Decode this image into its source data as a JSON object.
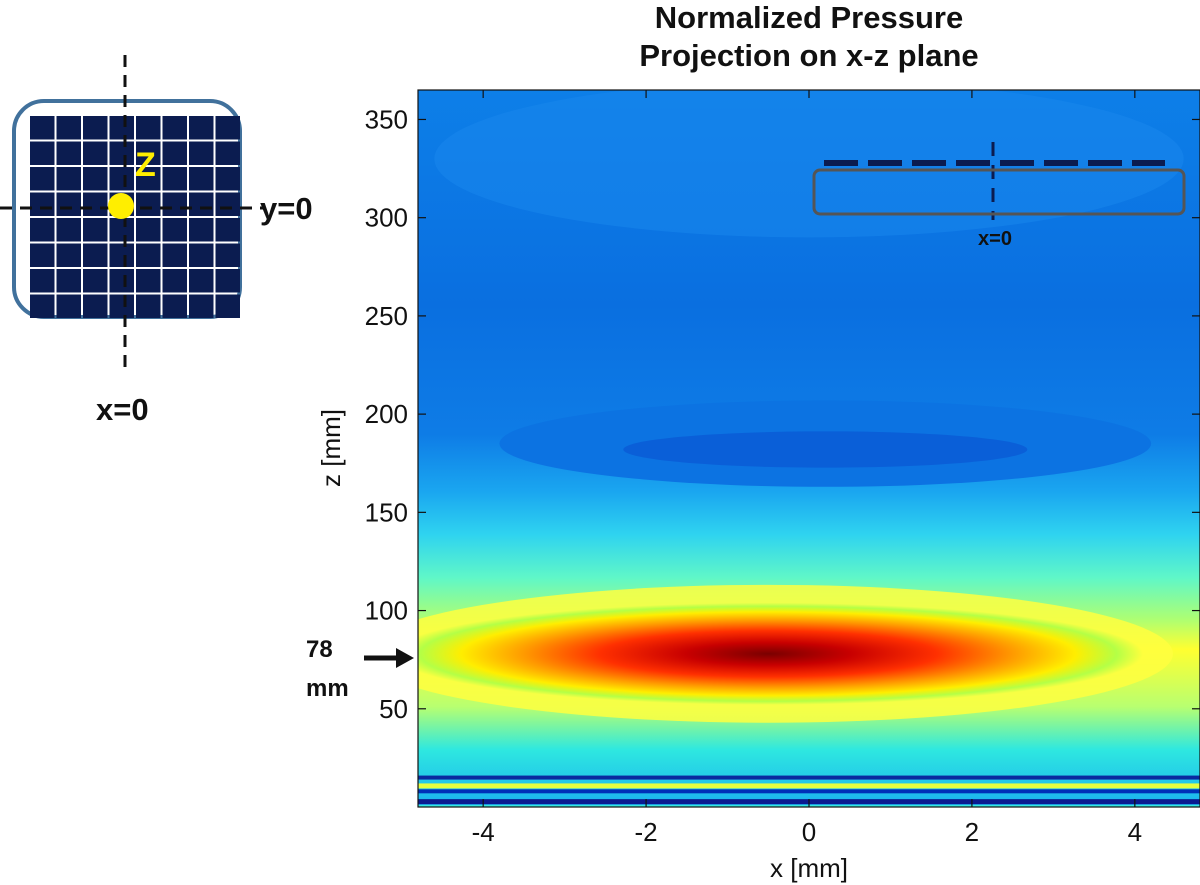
{
  "chart_data": {
    "type": "heatmap",
    "title": [
      "Normalized Pressure",
      "Projection on x-z plane"
    ],
    "xlabel": "x [mm]",
    "ylabel": "z [mm]",
    "xlim": [
      -4.8,
      4.8
    ],
    "ylim": [
      0,
      365
    ],
    "xticks": [
      -4,
      -2,
      0,
      2,
      4
    ],
    "xtick_labels": [
      "-4",
      "-2",
      "0",
      "2",
      "4"
    ],
    "yticks": [
      50,
      100,
      150,
      200,
      250,
      300,
      350
    ],
    "ytick_labels": [
      "50",
      "100",
      "150",
      "200",
      "250",
      "300",
      "350"
    ],
    "colormap": "jet",
    "value_range": [
      0,
      1
    ],
    "features": [
      {
        "name": "focal-peak",
        "x_center": -0.5,
        "z_center": 78,
        "x_halfwidth": 4.6,
        "z_halfwidth": 26,
        "peak_value": 1.0
      },
      {
        "name": "secondary-lobe",
        "x_center": 0.2,
        "z_center": 185,
        "x_halfwidth": 4.0,
        "z_halfwidth": 22,
        "value": 0.12
      },
      {
        "name": "near-field-bands",
        "z_range": [
          0,
          18
        ]
      }
    ],
    "annotations": [
      {
        "text_lines": [
          "78",
          "mm"
        ],
        "points_to_z": 78,
        "type": "arrow"
      },
      {
        "text": "x=0",
        "inset": "side-view-array"
      }
    ]
  },
  "inset_front": {
    "label_z": "Z",
    "label_y0": "y=0",
    "label_x0": "x=0",
    "grid_rows": 8,
    "grid_cols": 8,
    "frame_color": "#41719c",
    "cell_color": "#0b1c50",
    "dot_color": "#ffee00"
  },
  "inset_side": {
    "label": "x=0",
    "frame_color": "#555555"
  },
  "colors": {
    "axis": "#111111",
    "text": "#111111"
  }
}
